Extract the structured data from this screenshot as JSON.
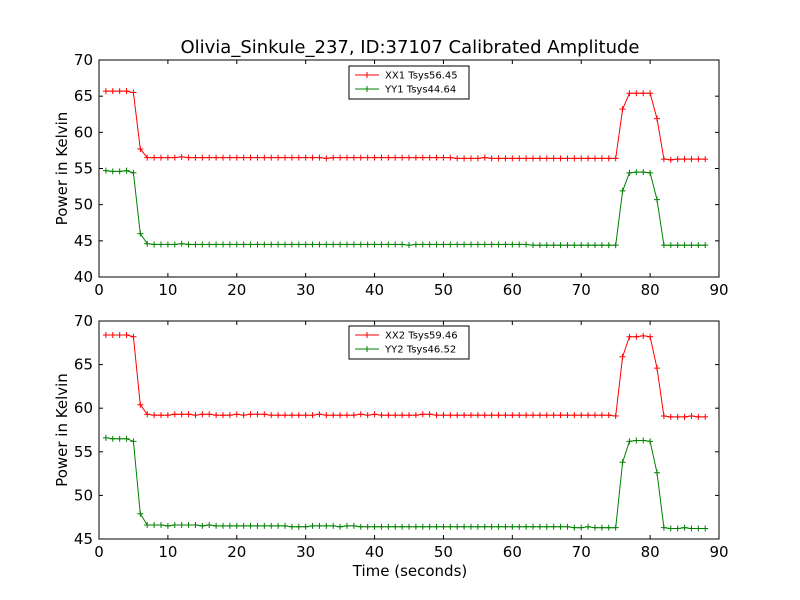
{
  "title": "Olivia_Sinkule_237, ID:37107 Calibrated Amplitude",
  "xlabel": "Time (seconds)",
  "colors": {
    "red": "#ff0000",
    "green": "#008000"
  },
  "chart_data": [
    {
      "type": "line",
      "ylabel": "Power in Kelvin",
      "xlim": [
        0,
        90
      ],
      "ylim": [
        40,
        70
      ],
      "x_ticks": [
        0,
        10,
        20,
        30,
        40,
        50,
        60,
        70,
        80,
        90
      ],
      "y_ticks": [
        40,
        45,
        50,
        55,
        60,
        65,
        70
      ],
      "legend_placement": "upper-center",
      "x": [
        1,
        2,
        3,
        4,
        5,
        6,
        7,
        8,
        9,
        10,
        11,
        12,
        13,
        14,
        15,
        16,
        17,
        18,
        19,
        20,
        21,
        22,
        23,
        24,
        25,
        26,
        27,
        28,
        29,
        30,
        31,
        32,
        33,
        34,
        35,
        36,
        37,
        38,
        39,
        40,
        41,
        42,
        43,
        44,
        45,
        46,
        47,
        48,
        49,
        50,
        51,
        52,
        53,
        54,
        55,
        56,
        57,
        58,
        59,
        60,
        61,
        62,
        63,
        64,
        65,
        66,
        67,
        68,
        69,
        70,
        71,
        72,
        73,
        74,
        75,
        76,
        77,
        78,
        79,
        80,
        81,
        82,
        83,
        84,
        85,
        86,
        87,
        88
      ],
      "series": [
        {
          "name": "XX1 Tsys56.45",
          "color": "#ff0000",
          "values": [
            65.7,
            65.7,
            65.7,
            65.7,
            65.5,
            57.7,
            56.5,
            56.5,
            56.5,
            56.5,
            56.5,
            56.6,
            56.5,
            56.5,
            56.5,
            56.5,
            56.5,
            56.5,
            56.5,
            56.5,
            56.5,
            56.5,
            56.5,
            56.5,
            56.5,
            56.5,
            56.5,
            56.5,
            56.5,
            56.5,
            56.5,
            56.5,
            56.4,
            56.5,
            56.5,
            56.5,
            56.5,
            56.5,
            56.5,
            56.5,
            56.5,
            56.5,
            56.5,
            56.5,
            56.5,
            56.5,
            56.5,
            56.5,
            56.5,
            56.5,
            56.5,
            56.4,
            56.4,
            56.4,
            56.4,
            56.5,
            56.4,
            56.4,
            56.4,
            56.4,
            56.4,
            56.4,
            56.4,
            56.4,
            56.4,
            56.4,
            56.4,
            56.4,
            56.4,
            56.4,
            56.4,
            56.4,
            56.4,
            56.4,
            56.4,
            63.2,
            65.4,
            65.4,
            65.4,
            65.4,
            61.9,
            56.3,
            56.2,
            56.3,
            56.3,
            56.3,
            56.3,
            56.3
          ]
        },
        {
          "name": "YY1 Tsys44.64",
          "color": "#008000",
          "values": [
            54.7,
            54.6,
            54.6,
            54.7,
            54.4,
            46.0,
            44.6,
            44.5,
            44.5,
            44.5,
            44.5,
            44.6,
            44.5,
            44.5,
            44.5,
            44.5,
            44.5,
            44.5,
            44.5,
            44.5,
            44.5,
            44.5,
            44.5,
            44.5,
            44.5,
            44.5,
            44.5,
            44.5,
            44.5,
            44.5,
            44.5,
            44.5,
            44.5,
            44.5,
            44.5,
            44.5,
            44.5,
            44.5,
            44.5,
            44.5,
            44.5,
            44.5,
            44.5,
            44.5,
            44.4,
            44.5,
            44.5,
            44.5,
            44.5,
            44.5,
            44.5,
            44.5,
            44.5,
            44.5,
            44.5,
            44.5,
            44.5,
            44.5,
            44.5,
            44.5,
            44.5,
            44.5,
            44.4,
            44.4,
            44.4,
            44.4,
            44.4,
            44.4,
            44.4,
            44.4,
            44.4,
            44.4,
            44.4,
            44.4,
            44.4,
            51.9,
            54.4,
            54.5,
            54.5,
            54.4,
            50.7,
            44.4,
            44.4,
            44.4,
            44.4,
            44.4,
            44.4,
            44.4
          ]
        }
      ]
    },
    {
      "type": "line",
      "ylabel": "Power in Kelvin",
      "xlabel": "Time (seconds)",
      "xlim": [
        0,
        90
      ],
      "ylim": [
        45,
        70
      ],
      "x_ticks": [
        0,
        10,
        20,
        30,
        40,
        50,
        60,
        70,
        80,
        90
      ],
      "y_ticks": [
        45,
        50,
        55,
        60,
        65,
        70
      ],
      "legend_placement": "upper-center",
      "x": [
        1,
        2,
        3,
        4,
        5,
        6,
        7,
        8,
        9,
        10,
        11,
        12,
        13,
        14,
        15,
        16,
        17,
        18,
        19,
        20,
        21,
        22,
        23,
        24,
        25,
        26,
        27,
        28,
        29,
        30,
        31,
        32,
        33,
        34,
        35,
        36,
        37,
        38,
        39,
        40,
        41,
        42,
        43,
        44,
        45,
        46,
        47,
        48,
        49,
        50,
        51,
        52,
        53,
        54,
        55,
        56,
        57,
        58,
        59,
        60,
        61,
        62,
        63,
        64,
        65,
        66,
        67,
        68,
        69,
        70,
        71,
        72,
        73,
        74,
        75,
        76,
        77,
        78,
        79,
        80,
        81,
        82,
        83,
        84,
        85,
        86,
        87,
        88
      ],
      "series": [
        {
          "name": "XX2 Tsys59.46",
          "color": "#ff0000",
          "values": [
            68.4,
            68.4,
            68.4,
            68.4,
            68.2,
            60.4,
            59.3,
            59.2,
            59.2,
            59.2,
            59.3,
            59.3,
            59.3,
            59.2,
            59.3,
            59.3,
            59.2,
            59.2,
            59.2,
            59.3,
            59.2,
            59.3,
            59.3,
            59.3,
            59.2,
            59.2,
            59.2,
            59.2,
            59.2,
            59.2,
            59.2,
            59.3,
            59.2,
            59.2,
            59.2,
            59.2,
            59.2,
            59.3,
            59.2,
            59.3,
            59.2,
            59.2,
            59.2,
            59.2,
            59.2,
            59.2,
            59.3,
            59.3,
            59.2,
            59.2,
            59.2,
            59.2,
            59.2,
            59.2,
            59.2,
            59.2,
            59.2,
            59.2,
            59.2,
            59.2,
            59.2,
            59.2,
            59.2,
            59.2,
            59.2,
            59.2,
            59.2,
            59.2,
            59.2,
            59.2,
            59.2,
            59.2,
            59.2,
            59.2,
            59.1,
            65.9,
            68.2,
            68.2,
            68.3,
            68.2,
            64.6,
            59.1,
            59.0,
            59.0,
            59.0,
            59.1,
            59.0,
            59.0
          ]
        },
        {
          "name": "YY2 Tsys46.52",
          "color": "#008000",
          "values": [
            56.6,
            56.5,
            56.5,
            56.5,
            56.2,
            47.9,
            46.6,
            46.6,
            46.6,
            46.5,
            46.6,
            46.6,
            46.6,
            46.6,
            46.5,
            46.6,
            46.5,
            46.5,
            46.5,
            46.5,
            46.5,
            46.5,
            46.5,
            46.5,
            46.5,
            46.5,
            46.5,
            46.4,
            46.4,
            46.4,
            46.5,
            46.5,
            46.5,
            46.5,
            46.4,
            46.5,
            46.5,
            46.4,
            46.4,
            46.4,
            46.4,
            46.4,
            46.4,
            46.4,
            46.4,
            46.4,
            46.4,
            46.4,
            46.4,
            46.4,
            46.4,
            46.4,
            46.4,
            46.4,
            46.4,
            46.4,
            46.4,
            46.4,
            46.4,
            46.4,
            46.4,
            46.4,
            46.4,
            46.4,
            46.4,
            46.4,
            46.4,
            46.4,
            46.3,
            46.3,
            46.4,
            46.3,
            46.3,
            46.3,
            46.3,
            53.8,
            56.2,
            56.3,
            56.3,
            56.2,
            52.6,
            46.3,
            46.2,
            46.2,
            46.3,
            46.2,
            46.2,
            46.2
          ]
        }
      ]
    }
  ]
}
